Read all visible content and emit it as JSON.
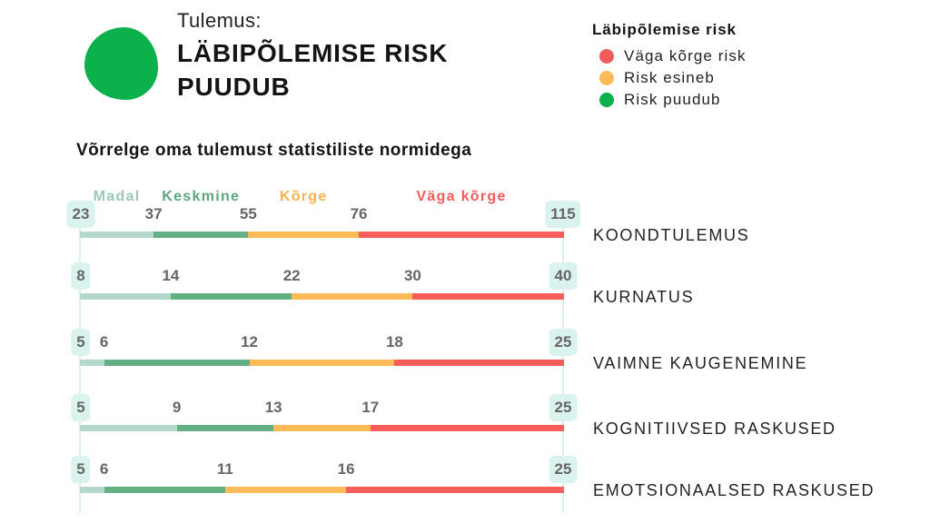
{
  "result": {
    "label": "Tulemus:",
    "title_line1": "LÄBIPÕLEMISE RISK",
    "title_line2": "PUUDUB",
    "indicator_icon": "green-circle",
    "color": "#0db14b"
  },
  "legend": {
    "title": "Läbipõlemise risk",
    "items": [
      {
        "label": "Väga kõrge risk",
        "color": "#f45b5b"
      },
      {
        "label": "Risk esineb",
        "color": "#fdbb58"
      },
      {
        "label": "Risk puudub",
        "color": "#0db14b"
      }
    ]
  },
  "chart_data": {
    "type": "bar",
    "orientation": "horizontal",
    "stacked": true,
    "title": "Võrrelge oma tulemust statistiliste normidega",
    "legend": [
      "Madal",
      "Keskmine",
      "Kõrge",
      "Väga kõrge"
    ],
    "legend_placement": "top",
    "series_colors": [
      "#b5d8cc",
      "#64af83",
      "#fdbb58",
      "#f75e5b"
    ],
    "legend_text_colors": [
      "#9cc6b8",
      "#5ea57c",
      "#f8b34f",
      "#f45b5a"
    ],
    "categories": [
      "KOONDTULEMUS",
      "KURNATUS",
      "VAIMNE KAUGENEMINE",
      "KOGNITIIVSED RASKUSED",
      "EMOTSIONAALSED RASKUSED"
    ],
    "rows": [
      {
        "min": 23,
        "thresholds": [
          37,
          55,
          76
        ],
        "max": 115
      },
      {
        "min": 8,
        "thresholds": [
          14,
          22,
          30
        ],
        "max": 40
      },
      {
        "min": 5,
        "thresholds": [
          6,
          12,
          18
        ],
        "max": 25
      },
      {
        "min": 5,
        "thresholds": [
          9,
          13,
          17
        ],
        "max": 25
      },
      {
        "min": 5,
        "thresholds": [
          6,
          11,
          16
        ],
        "max": 25
      }
    ],
    "grid": false
  }
}
